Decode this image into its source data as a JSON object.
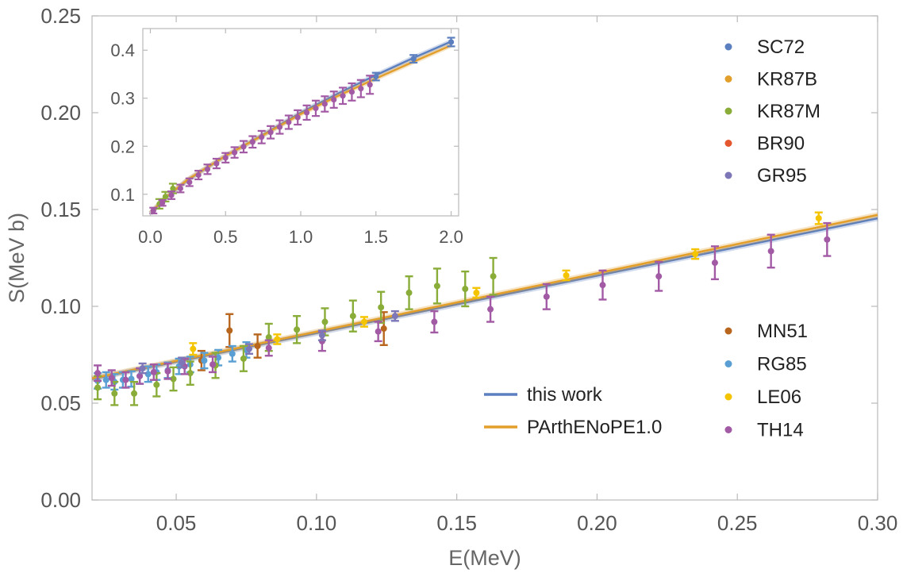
{
  "chart_data": {
    "type": "scatter",
    "xlabel": "E(MeV)",
    "ylabel": "S(MeV b)",
    "xlim": [
      0.02,
      0.3
    ],
    "ylim": [
      0.0,
      0.25
    ],
    "x_ticks": [
      {
        "value": 0.05,
        "label": "0.05"
      },
      {
        "value": 0.1,
        "label": "0.10"
      },
      {
        "value": 0.15,
        "label": "0.15"
      },
      {
        "value": 0.2,
        "label": "0.20"
      },
      {
        "value": 0.25,
        "label": "0.25"
      },
      {
        "value": 0.3,
        "label": "0.30"
      }
    ],
    "y_ticks": [
      {
        "value": 0.0,
        "label": "0.00"
      },
      {
        "value": 0.05,
        "label": "0.05"
      },
      {
        "value": 0.1,
        "label": "0.10"
      },
      {
        "value": 0.15,
        "label": "0.15"
      },
      {
        "value": 0.2,
        "label": "0.20"
      },
      {
        "value": 0.25,
        "label": "0.25"
      }
    ],
    "fits": [
      {
        "name": "this work",
        "color": "#5b7fbf",
        "points": [
          [
            0.02,
            0.0625
          ],
          [
            0.3,
            0.1455
          ]
        ]
      },
      {
        "name": "PArthENoPE1.0",
        "color": "#e39f2b",
        "points": [
          [
            0.02,
            0.0628
          ],
          [
            0.3,
            0.1472
          ]
        ]
      }
    ],
    "series": [
      {
        "name": "MN51",
        "color": "#b8651e",
        "points": [
          [
            0.069,
            0.0875,
            0.0085
          ],
          [
            0.079,
            0.0795,
            0.006
          ],
          [
            0.124,
            0.0885,
            0.0085
          ],
          [
            0.059,
            0.072,
            0.005
          ]
        ]
      },
      {
        "name": "RG85",
        "color": "#5a9fd4",
        "points": [
          [
            0.022,
            0.0615,
            0.004
          ],
          [
            0.025,
            0.062,
            0.004
          ],
          [
            0.028,
            0.061,
            0.004
          ],
          [
            0.031,
            0.062,
            0.004
          ],
          [
            0.034,
            0.0625,
            0.004
          ],
          [
            0.037,
            0.064,
            0.004
          ],
          [
            0.04,
            0.065,
            0.004
          ],
          [
            0.043,
            0.066,
            0.004
          ],
          [
            0.047,
            0.067,
            0.004
          ],
          [
            0.051,
            0.069,
            0.004
          ],
          [
            0.055,
            0.07,
            0.004
          ],
          [
            0.06,
            0.072,
            0.004
          ],
          [
            0.065,
            0.0735,
            0.004
          ],
          [
            0.07,
            0.0755,
            0.004
          ],
          [
            0.075,
            0.0775,
            0.004
          ]
        ]
      },
      {
        "name": "LE06",
        "color": "#f5c400",
        "points": [
          [
            0.056,
            0.078,
            0.003
          ],
          [
            0.086,
            0.083,
            0.0025
          ],
          [
            0.117,
            0.092,
            0.0025
          ],
          [
            0.157,
            0.107,
            0.0025
          ],
          [
            0.189,
            0.116,
            0.0025
          ],
          [
            0.235,
            0.127,
            0.0025
          ],
          [
            0.279,
            0.1455,
            0.003
          ]
        ]
      },
      {
        "name": "KR87M",
        "color": "#8aad3a",
        "points": [
          [
            0.022,
            0.058,
            0.006
          ],
          [
            0.028,
            0.055,
            0.006
          ],
          [
            0.035,
            0.055,
            0.006
          ],
          [
            0.043,
            0.0595,
            0.006
          ],
          [
            0.049,
            0.0625,
            0.006
          ],
          [
            0.055,
            0.0655,
            0.006
          ],
          [
            0.064,
            0.0695,
            0.0065
          ],
          [
            0.074,
            0.073,
            0.0065
          ],
          [
            0.083,
            0.084,
            0.007
          ],
          [
            0.093,
            0.088,
            0.007
          ],
          [
            0.103,
            0.092,
            0.007
          ],
          [
            0.113,
            0.095,
            0.008
          ],
          [
            0.123,
            0.0995,
            0.008
          ],
          [
            0.133,
            0.107,
            0.0085
          ],
          [
            0.143,
            0.1105,
            0.009
          ],
          [
            0.153,
            0.109,
            0.009
          ],
          [
            0.163,
            0.1155,
            0.0095
          ]
        ]
      },
      {
        "name": "TH14",
        "color": "#a25aa5",
        "points": [
          [
            0.022,
            0.0655,
            0.004
          ],
          [
            0.027,
            0.063,
            0.004
          ],
          [
            0.032,
            0.062,
            0.004
          ],
          [
            0.037,
            0.064,
            0.004
          ],
          [
            0.042,
            0.066,
            0.004
          ],
          [
            0.047,
            0.0665,
            0.004
          ],
          [
            0.053,
            0.069,
            0.004
          ],
          [
            0.063,
            0.07,
            0.004
          ],
          [
            0.083,
            0.0785,
            0.004
          ],
          [
            0.102,
            0.082,
            0.005
          ],
          [
            0.122,
            0.087,
            0.005
          ],
          [
            0.142,
            0.092,
            0.0055
          ],
          [
            0.162,
            0.0985,
            0.0065
          ],
          [
            0.182,
            0.105,
            0.0065
          ],
          [
            0.202,
            0.111,
            0.0075
          ],
          [
            0.222,
            0.1155,
            0.0075
          ],
          [
            0.242,
            0.1225,
            0.0085
          ],
          [
            0.262,
            0.1285,
            0.0085
          ],
          [
            0.282,
            0.1345,
            0.0085
          ]
        ]
      },
      {
        "name": "GR95",
        "color": "#7d77b8",
        "points": [
          [
            0.038,
            0.068,
            0.0025
          ],
          [
            0.052,
            0.071,
            0.0025
          ],
          [
            0.076,
            0.078,
            0.0025
          ],
          [
            0.102,
            0.085,
            0.0025
          ],
          [
            0.128,
            0.095,
            0.0025
          ]
        ]
      }
    ],
    "legend_top": [
      {
        "name": "SC72",
        "color": "#5b7fbf"
      },
      {
        "name": "KR87B",
        "color": "#e39f2b"
      },
      {
        "name": "KR87M",
        "color": "#8aad3a"
      },
      {
        "name": "BR90",
        "color": "#e4572e"
      },
      {
        "name": "GR95",
        "color": "#7d77b8"
      }
    ],
    "legend_bottom": [
      {
        "name": "MN51",
        "color": "#b8651e"
      },
      {
        "name": "RG85",
        "color": "#5a9fd4"
      },
      {
        "name": "LE06",
        "color": "#f5c400"
      },
      {
        "name": "TH14",
        "color": "#a25aa5"
      }
    ],
    "legend_lines": [
      {
        "name": "this work",
        "color": "#5b7fbf"
      },
      {
        "name": "PArthENoPE1.0",
        "color": "#e39f2b"
      }
    ],
    "inset": {
      "type": "scatter",
      "xlim": [
        -0.05,
        2.05
      ],
      "ylim": [
        0.055,
        0.445
      ],
      "x_ticks": [
        {
          "value": 0.0,
          "label": "0.0"
        },
        {
          "value": 0.5,
          "label": "0.5"
        },
        {
          "value": 1.0,
          "label": "1.0"
        },
        {
          "value": 1.5,
          "label": "1.5"
        },
        {
          "value": 2.0,
          "label": "2.0"
        }
      ],
      "y_ticks": [
        {
          "value": 0.1,
          "label": "0.1"
        },
        {
          "value": 0.2,
          "label": "0.2"
        },
        {
          "value": 0.3,
          "label": "0.3"
        },
        {
          "value": 0.4,
          "label": "0.4"
        }
      ],
      "fits": [
        {
          "name": "this work",
          "color": "#5b7fbf",
          "points": [
            [
              0.0,
              0.06
            ],
            [
              0.1,
              0.092
            ],
            [
              0.25,
              0.13
            ],
            [
              0.5,
              0.18
            ],
            [
              0.75,
              0.224
            ],
            [
              1.0,
              0.27
            ],
            [
              1.25,
              0.31
            ],
            [
              1.5,
              0.348
            ],
            [
              1.75,
              0.384
            ],
            [
              2.0,
              0.418
            ]
          ]
        },
        {
          "name": "PArthENoPE1.0",
          "color": "#e39f2b",
          "points": [
            [
              0.0,
              0.061
            ],
            [
              0.1,
              0.093
            ],
            [
              0.25,
              0.131
            ],
            [
              0.5,
              0.18
            ],
            [
              0.75,
              0.223
            ],
            [
              1.0,
              0.267
            ],
            [
              1.25,
              0.305
            ],
            [
              1.5,
              0.341
            ],
            [
              1.75,
              0.376
            ],
            [
              2.0,
              0.41
            ]
          ]
        }
      ],
      "series": [
        {
          "name": "SC72",
          "color": "#5b7fbf",
          "points": [
            [
              1.5,
              0.345,
              0.008
            ],
            [
              1.75,
              0.382,
              0.008
            ],
            [
              2.0,
              0.417,
              0.009
            ]
          ]
        },
        {
          "name": "KR87M",
          "color": "#8aad3a",
          "points": [
            [
              0.06,
              0.08,
              0.01
            ],
            [
              0.1,
              0.095,
              0.01
            ],
            [
              0.15,
              0.112,
              0.01
            ]
          ]
        },
        {
          "name": "TH14",
          "color": "#a25aa5",
          "points": [
            [
              0.02,
              0.066,
              0.006
            ],
            [
              0.08,
              0.082,
              0.006
            ],
            [
              0.14,
              0.098,
              0.008
            ],
            [
              0.2,
              0.112,
              0.008
            ],
            [
              0.26,
              0.125,
              0.008
            ],
            [
              0.32,
              0.14,
              0.009
            ],
            [
              0.38,
              0.152,
              0.01
            ],
            [
              0.44,
              0.164,
              0.01
            ],
            [
              0.5,
              0.176,
              0.01
            ],
            [
              0.56,
              0.187,
              0.011
            ],
            [
              0.62,
              0.199,
              0.012
            ],
            [
              0.68,
              0.209,
              0.012
            ],
            [
              0.74,
              0.219,
              0.013
            ],
            [
              0.8,
              0.229,
              0.013
            ],
            [
              0.86,
              0.24,
              0.014
            ],
            [
              0.92,
              0.25,
              0.014
            ],
            [
              0.98,
              0.26,
              0.015
            ],
            [
              1.04,
              0.27,
              0.015
            ],
            [
              1.1,
              0.279,
              0.016
            ],
            [
              1.16,
              0.288,
              0.016
            ],
            [
              1.22,
              0.297,
              0.017
            ],
            [
              1.28,
              0.305,
              0.017
            ],
            [
              1.34,
              0.313,
              0.018
            ],
            [
              1.4,
              0.32,
              0.018
            ],
            [
              1.46,
              0.328,
              0.019
            ]
          ]
        }
      ]
    }
  }
}
